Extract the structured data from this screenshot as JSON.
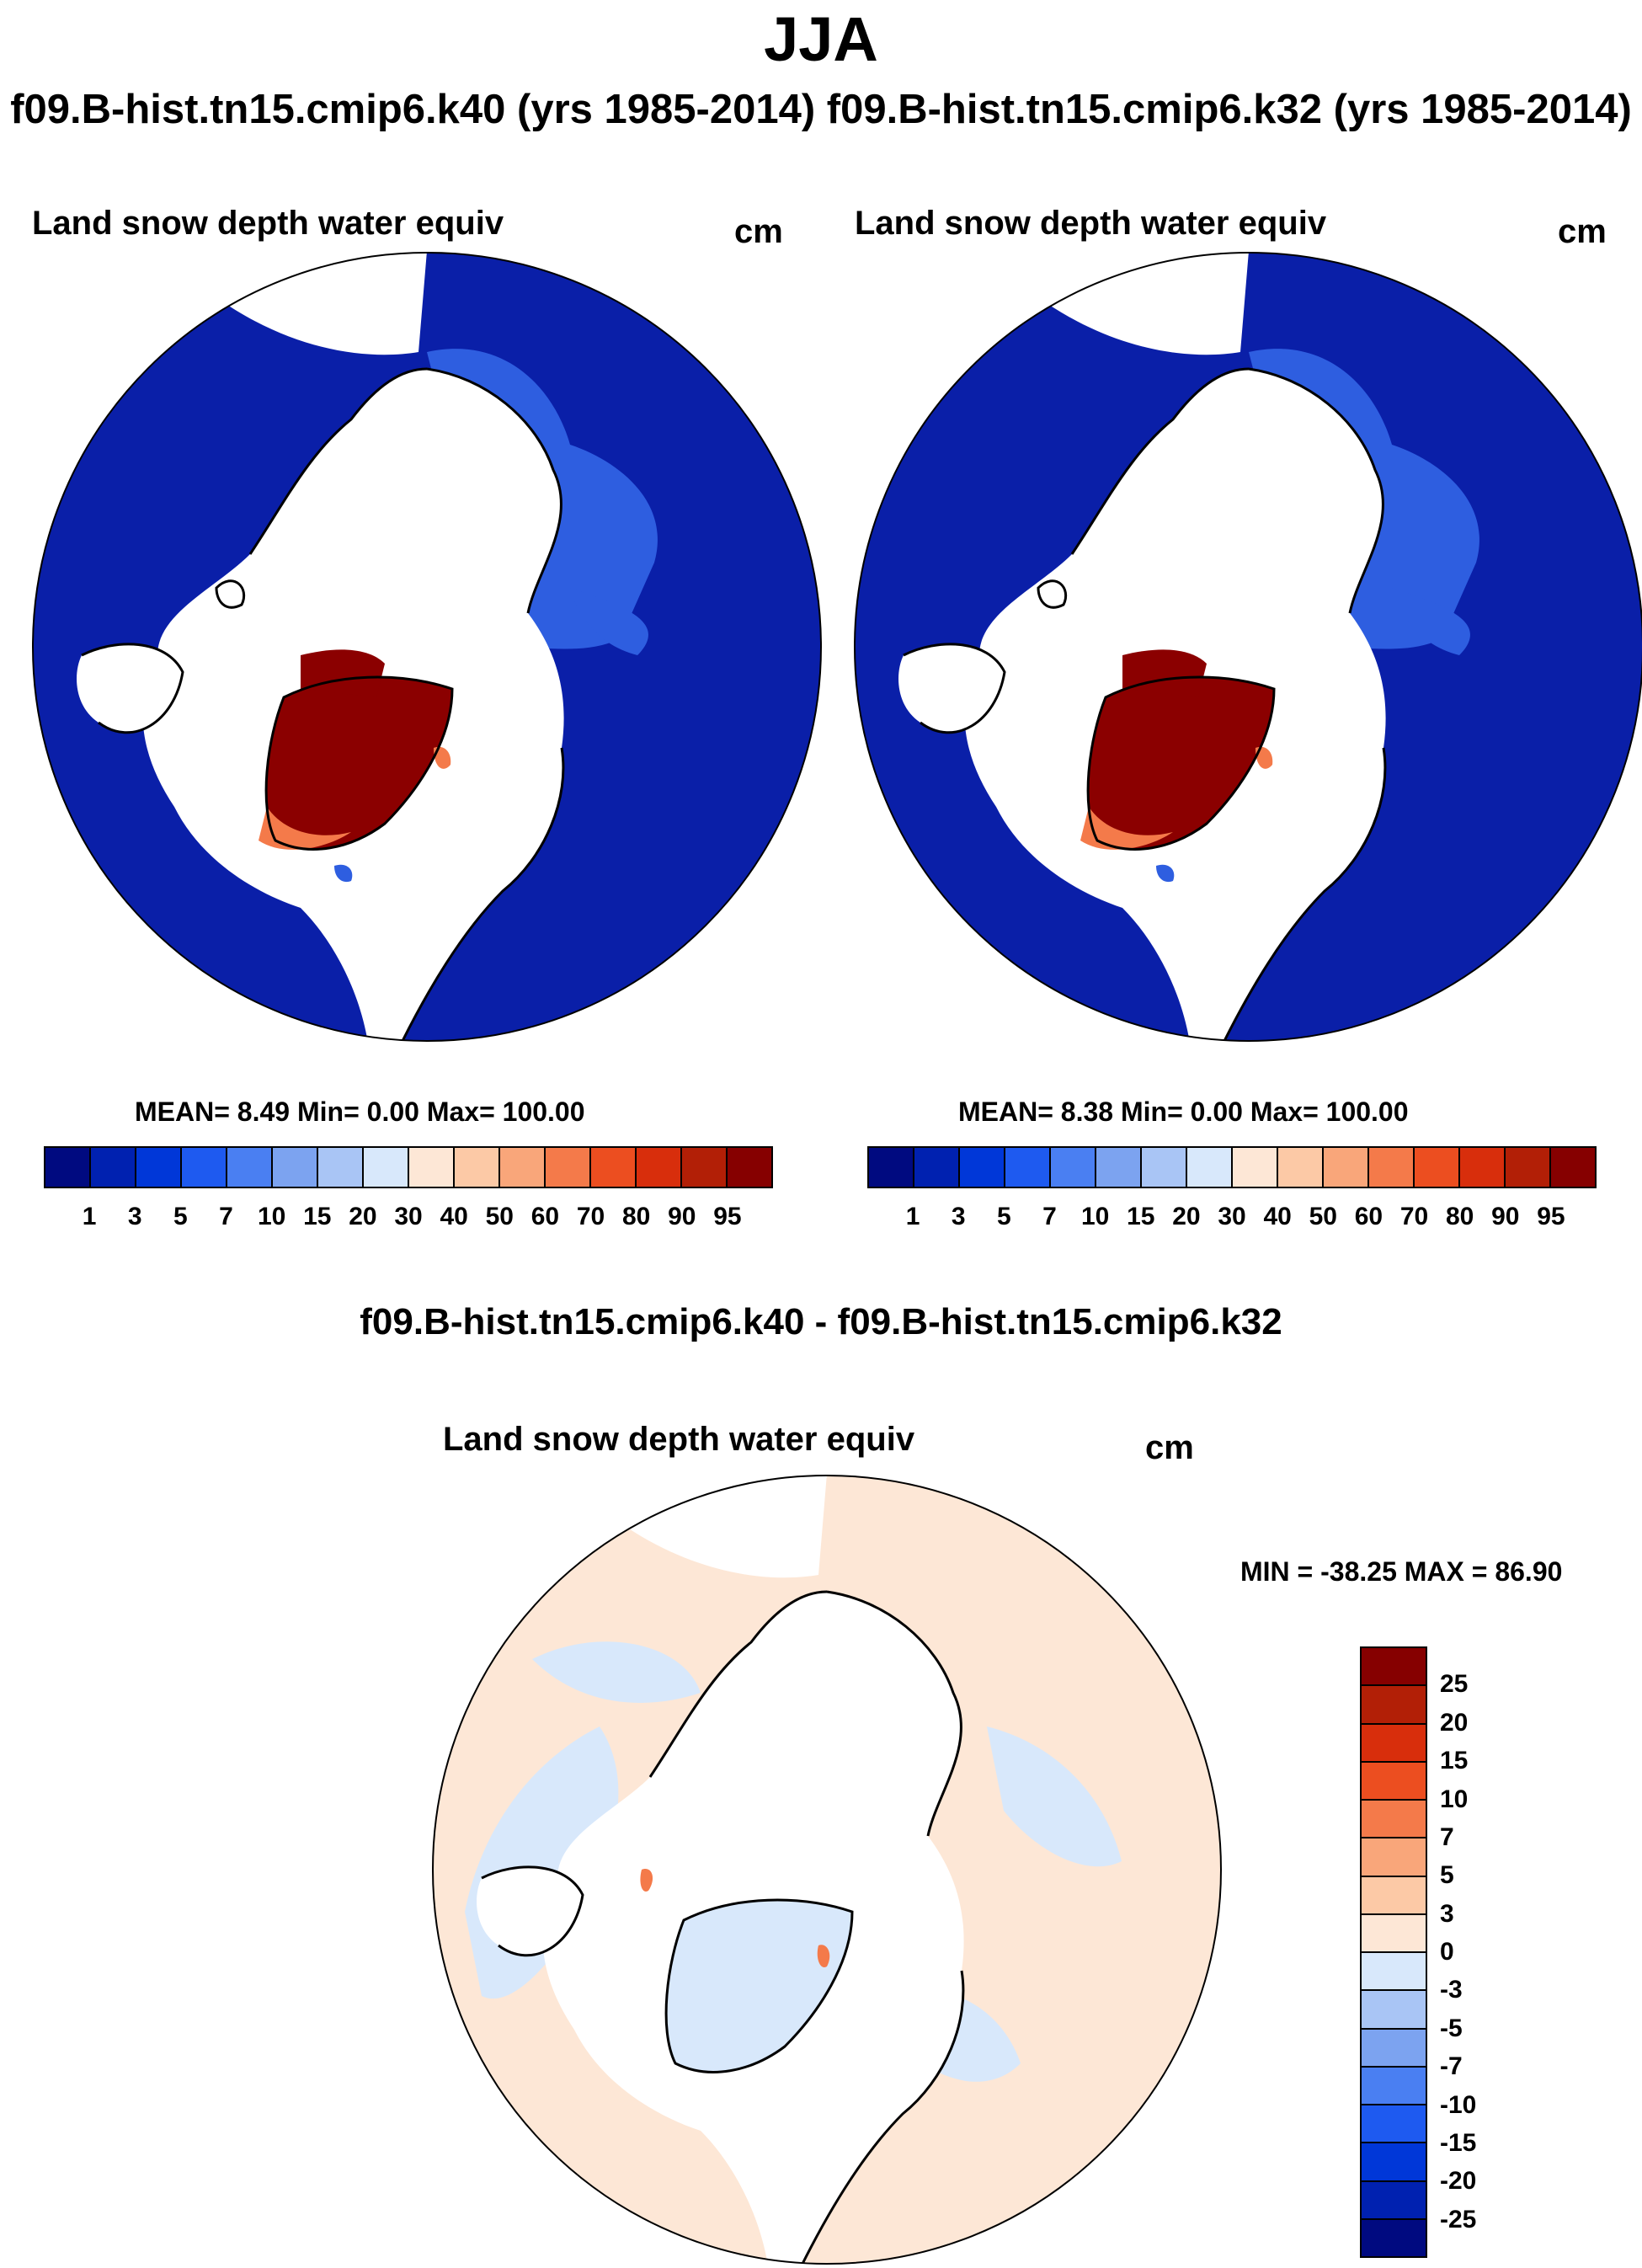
{
  "header": {
    "title": "JJA",
    "subtitle": "f09.B-hist.tn15.cmip6.k40 (yrs 1985-2014) f09.B-hist.tn15.cmip6.k32 (yrs 1985-2014)"
  },
  "panels": [
    {
      "title": "Land snow depth water equiv",
      "units": "cm",
      "stats": "MEAN=   8.49  Min=   0.00  Max= 100.00"
    },
    {
      "title": "Land snow depth water equiv",
      "units": "cm",
      "stats": "MEAN=   8.38  Min=   0.00  Max= 100.00"
    }
  ],
  "diff_panel": {
    "heading": "f09.B-hist.tn15.cmip6.k40 - f09.B-hist.tn15.cmip6.k32",
    "title": "Land snow depth water equiv",
    "units": "cm",
    "stats": "MIN = -38.25 MAX =  86.90"
  },
  "colorbar_main": {
    "colors": [
      "#000a80",
      "#0021b0",
      "#0037d8",
      "#1e5af0",
      "#4a7ff2",
      "#7ca3f0",
      "#a9c5f5",
      "#d8e8fb",
      "#fde7d6",
      "#fcc9a6",
      "#f9a67a",
      "#f47a4a",
      "#ec4e20",
      "#d82e0c",
      "#b21f06",
      "#860000"
    ],
    "labels": [
      "1",
      "3",
      "5",
      "7",
      "10",
      "15",
      "20",
      "30",
      "40",
      "50",
      "60",
      "70",
      "80",
      "90",
      "95"
    ]
  },
  "colorbar_diff": {
    "colors": [
      "#860000",
      "#b21f06",
      "#d82e0c",
      "#ec4e20",
      "#f47a4a",
      "#f9a67a",
      "#fcc9a6",
      "#fde7d6",
      "#d8e8fb",
      "#a9c5f5",
      "#7ca3f0",
      "#4a7ff2",
      "#1e5af0",
      "#0037d8",
      "#0021b0",
      "#000a80"
    ],
    "labels": [
      "25",
      "20",
      "15",
      "10",
      "7",
      "5",
      "3",
      "0",
      "-3",
      "-5",
      "-7",
      "-10",
      "-15",
      "-20",
      "-25"
    ]
  },
  "map_colors": {
    "snow_low": "#0a1fa8",
    "snow_mid": "#2e5ee0",
    "snow_high": "#8b0000",
    "ice_free": "#ffffff",
    "diff_pos": "#fde7d6",
    "diff_neg": "#d8e8fb"
  }
}
